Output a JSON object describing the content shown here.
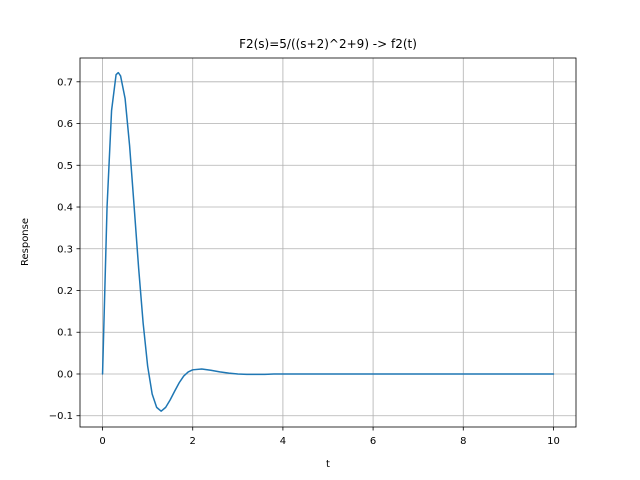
{
  "chart_data": {
    "type": "line",
    "title": "F2(s)=5/((s+2)^2+9)  ->  f2(t)",
    "xlabel": "t",
    "ylabel": "Response",
    "xlim": [
      -0.5,
      10.5
    ],
    "ylim": [
      -0.127,
      0.757
    ],
    "xticks": [
      0,
      2,
      4,
      6,
      8,
      10
    ],
    "xtick_labels": [
      "0",
      "2",
      "4",
      "6",
      "8",
      "10"
    ],
    "yticks": [
      -0.1,
      0.0,
      0.1,
      0.2,
      0.3,
      0.4,
      0.5,
      0.6,
      0.7
    ],
    "ytick_labels": [
      "−0.1",
      "0.0",
      "0.1",
      "0.2",
      "0.3",
      "0.4",
      "0.5",
      "0.6",
      "0.7"
    ],
    "grid": true,
    "series": [
      {
        "color": "#1f77b4",
        "x": [
          0,
          0.1,
          0.2,
          0.3,
          0.35,
          0.4,
          0.5,
          0.6,
          0.7,
          0.8,
          0.9,
          1.0,
          1.1,
          1.2,
          1.3,
          1.4,
          1.5,
          1.6,
          1.7,
          1.8,
          1.9,
          2.0,
          2.2,
          2.4,
          2.6,
          2.8,
          3.0,
          3.2,
          3.4,
          3.6,
          3.8,
          4.0,
          4.5,
          5.0,
          6.0,
          7.0,
          8.0,
          9.0,
          10.0
        ],
        "y": [
          0.0,
          0.4,
          0.631,
          0.717,
          0.722,
          0.714,
          0.66,
          0.547,
          0.402,
          0.254,
          0.122,
          0.019,
          -0.048,
          -0.08,
          -0.089,
          -0.08,
          -0.062,
          -0.041,
          -0.021,
          -0.005,
          0.005,
          0.01,
          0.012,
          0.009,
          0.005,
          0.002,
          0.0,
          -0.001,
          -0.001,
          -0.001,
          0.0,
          0.0,
          0.0,
          0.0,
          0.0,
          0.0,
          0.0,
          0.0,
          0.0
        ]
      }
    ]
  }
}
